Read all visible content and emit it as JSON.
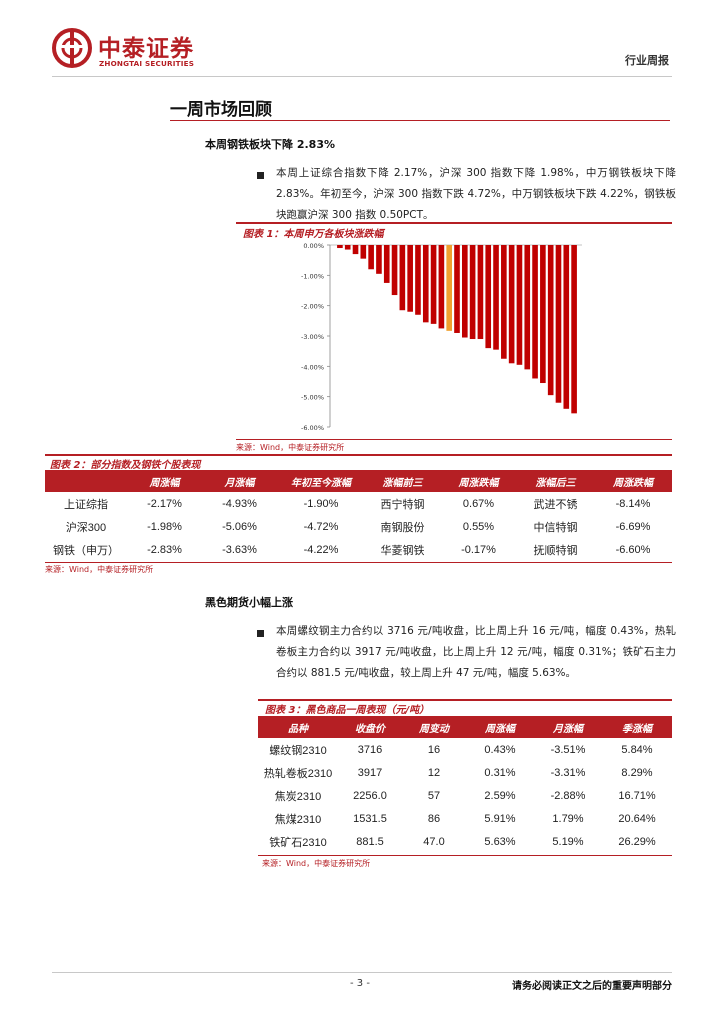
{
  "header": {
    "brand_cn": "中泰证券",
    "brand_en": "ZHONGTAI SECURITIES",
    "report_type": "行业周报",
    "brand_color": "#b51f24"
  },
  "section": {
    "title": "一周市场回顾"
  },
  "sub1": {
    "title": "本周钢铁板块下降 2.83%",
    "para": "本周上证综合指数下降 2.17%，沪深 300 指数下降 1.98%，中万钢铁板块下降 2.83%。年初至今，沪深 300 指数下跌 4.72%，中万钢铁板块下跌 4.22%，钢铁板块跑赢沪深 300 指数 0.50PCT。"
  },
  "fig1": {
    "caption": "图表 1：本周申万各板块涨跌幅",
    "source": "来源：Wind，中泰证券研究所"
  },
  "chart_data": {
    "type": "bar",
    "title": "",
    "ylim": [
      -6,
      0
    ],
    "yticks": [
      "0.00%",
      "-1.00%",
      "-2.00%",
      "-3.00%",
      "-4.00%",
      "-5.00%",
      "-6.00%"
    ],
    "ytick_values": [
      0,
      -1,
      -2,
      -3,
      -4,
      -5,
      -6
    ],
    "values": [
      -0.1,
      -0.15,
      -0.3,
      -0.45,
      -0.8,
      -0.95,
      -1.25,
      -1.65,
      -2.15,
      -2.2,
      -2.3,
      -2.55,
      -2.6,
      -2.75,
      -2.83,
      -2.9,
      -3.05,
      -3.1,
      -3.1,
      -3.4,
      -3.45,
      -3.75,
      -3.9,
      -3.95,
      -4.1,
      -4.4,
      -4.55,
      -4.95,
      -5.2,
      -5.4,
      -5.55
    ],
    "highlight_index": 14,
    "bar_color": "#c00000",
    "highlight_color": "#f0a030",
    "grid": false
  },
  "sub2": {
    "table_caption": "图表 2：部分指数及钢铁个股表现",
    "headers": [
      "",
      "周涨幅",
      "月涨幅",
      "年初至今涨幅",
      "涨幅前三",
      "周涨跌幅",
      "涨幅后三",
      "周涨跌幅"
    ],
    "rows": [
      [
        "上证综指",
        "-2.17%",
        "-4.93%",
        "-1.90%",
        "西宁特钢",
        "0.67%",
        "武进不锈",
        "-8.14%"
      ],
      [
        "沪深300",
        "-1.98%",
        "-5.06%",
        "-4.72%",
        "南钢股份",
        "0.55%",
        "中信特钢",
        "-6.69%"
      ],
      [
        "钢铁（申万）",
        "-2.83%",
        "-3.63%",
        "-4.22%",
        "华菱钢铁",
        "-0.17%",
        "抚顺特钢",
        "-6.60%"
      ]
    ],
    "source": "来源：Wind，中泰证券研究所"
  },
  "sub3": {
    "title": "黑色期货小幅上涨",
    "para": "本周螺纹钢主力合约以 3716 元/吨收盘，比上周上升 16 元/吨，幅度 0.43%，热轧卷板主力合约以 3917 元/吨收盘，比上周上升 12 元/吨，幅度 0.31%；铁矿石主力合约以 881.5 元/吨收盘，较上周上升 47 元/吨，幅度 5.63%。",
    "table_caption": "图表 3：黑色商品一周表现（元/吨）",
    "headers": [
      "品种",
      "收盘价",
      "周变动",
      "周涨幅",
      "月涨幅",
      "季涨幅"
    ],
    "rows": [
      [
        "螺纹钢2310",
        "3716",
        "16",
        "0.43%",
        "-3.51%",
        "5.84%"
      ],
      [
        "热轧卷板2310",
        "3917",
        "12",
        "0.31%",
        "-3.31%",
        "8.29%"
      ],
      [
        "焦炭2310",
        "2256.0",
        "57",
        "2.59%",
        "-2.88%",
        "16.71%"
      ],
      [
        "焦煤2310",
        "1531.5",
        "86",
        "5.91%",
        "1.79%",
        "20.64%"
      ],
      [
        "铁矿石2310",
        "881.5",
        "47.0",
        "5.63%",
        "5.19%",
        "26.29%"
      ]
    ],
    "source": "来源：Wind，中泰证券研究所"
  },
  "footer": {
    "page": "- 3 -",
    "disclaimer": "请务必阅读正文之后的重要声明部分"
  }
}
